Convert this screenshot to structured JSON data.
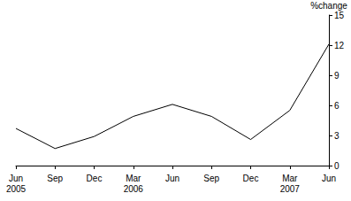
{
  "chart_data": {
    "type": "line",
    "y_label": "%change",
    "categories": [
      "Jun 2005",
      "Sep",
      "Dec",
      "Mar 2006",
      "Jun",
      "Sep",
      "Dec",
      "Mar 2007",
      "Jun"
    ],
    "values": [
      3.7,
      1.7,
      2.9,
      4.9,
      6.1,
      4.9,
      2.6,
      5.5,
      12.1
    ],
    "color": "#000000",
    "ylim": [
      0,
      15
    ],
    "yticks": [
      0,
      3,
      6,
      9,
      12,
      15
    ],
    "grid": false
  }
}
